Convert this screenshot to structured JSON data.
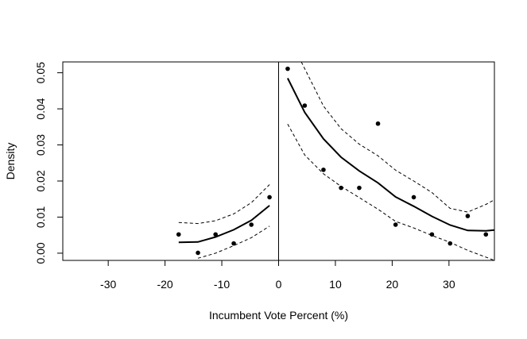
{
  "chart_data": {
    "type": "scatter",
    "title": "",
    "xlabel": "Incumbent Vote Percent (%)",
    "ylabel": "Density",
    "xlim": [
      -38,
      38
    ],
    "ylim": [
      -0.002,
      0.053
    ],
    "x_ticks": [
      -30,
      -20,
      -10,
      0,
      10,
      20,
      30
    ],
    "x_tick_labels": [
      "-30",
      "-20",
      "-10",
      "0",
      "10",
      "20",
      "30"
    ],
    "y_ticks": [
      0.0,
      0.01,
      0.02,
      0.03,
      0.04,
      0.05
    ],
    "y_tick_labels": [
      "0.00",
      "0.01",
      "0.02",
      "0.03",
      "0.04",
      "0.05"
    ],
    "cutoff_line_x": 0,
    "grid": false,
    "legend": "none",
    "points": {
      "x": [
        -17.6,
        -14.2,
        -11.1,
        -7.9,
        -4.8,
        -1.6,
        1.6,
        4.6,
        7.9,
        11.0,
        14.2,
        17.5,
        20.6,
        23.8,
        27.0,
        30.2,
        33.3,
        36.5
      ],
      "y": [
        0.0052,
        0.0001,
        0.0052,
        0.0027,
        0.0079,
        0.0155,
        0.0511,
        0.0409,
        0.0231,
        0.0181,
        0.0181,
        0.0359,
        0.0079,
        0.0155,
        0.0052,
        0.0027,
        0.0103,
        0.0052
      ]
    },
    "series": [
      {
        "role": "fit",
        "segments": [
          {
            "x": [
              -17.6,
              -14.2,
              -11.1,
              -7.9,
              -4.8,
              -1.6
            ],
            "y": [
              0.003,
              0.0031,
              0.0045,
              0.0065,
              0.0091,
              0.0132
            ]
          },
          {
            "x": [
              1.6,
              4.6,
              7.9,
              11.0,
              14.2,
              17.5,
              20.6,
              23.8,
              27.0,
              30.2,
              33.3,
              36.5,
              38.0
            ],
            "y": [
              0.0485,
              0.039,
              0.0317,
              0.0266,
              0.0228,
              0.0195,
              0.0156,
              0.013,
              0.0102,
              0.0078,
              0.0063,
              0.0062,
              0.0064
            ]
          }
        ]
      },
      {
        "role": "upper-band",
        "segments": [
          {
            "x": [
              -17.6,
              -14.2,
              -11.1,
              -7.9,
              -4.8,
              -1.6
            ],
            "y": [
              0.0085,
              0.0082,
              0.009,
              0.0109,
              0.014,
              0.019
            ]
          },
          {
            "x": [
              4.0,
              7.9,
              11.0,
              14.2,
              17.5,
              20.6,
              23.8,
              27.0,
              30.2,
              33.3,
              36.5,
              38.0
            ],
            "y": [
              0.053,
              0.0408,
              0.0345,
              0.0302,
              0.027,
              0.023,
              0.02,
              0.0168,
              0.0124,
              0.0114,
              0.0135,
              0.0148
            ]
          }
        ]
      },
      {
        "role": "lower-band",
        "segments": [
          {
            "x": [
              -14.2,
              -11.1,
              -7.9,
              -4.8,
              -1.6
            ],
            "y": [
              -0.0014,
              0.0,
              0.0021,
              0.0043,
              0.0075
            ]
          },
          {
            "x": [
              1.6,
              4.6,
              7.9,
              11.0,
              14.2,
              17.5,
              20.6,
              23.8,
              27.0,
              30.2,
              33.3,
              36.5,
              38.0
            ],
            "y": [
              0.0358,
              0.0272,
              0.022,
              0.0185,
              0.0154,
              0.0122,
              0.0088,
              0.007,
              0.0049,
              0.003,
              0.0008,
              -0.0011,
              -0.002
            ]
          }
        ]
      }
    ]
  }
}
